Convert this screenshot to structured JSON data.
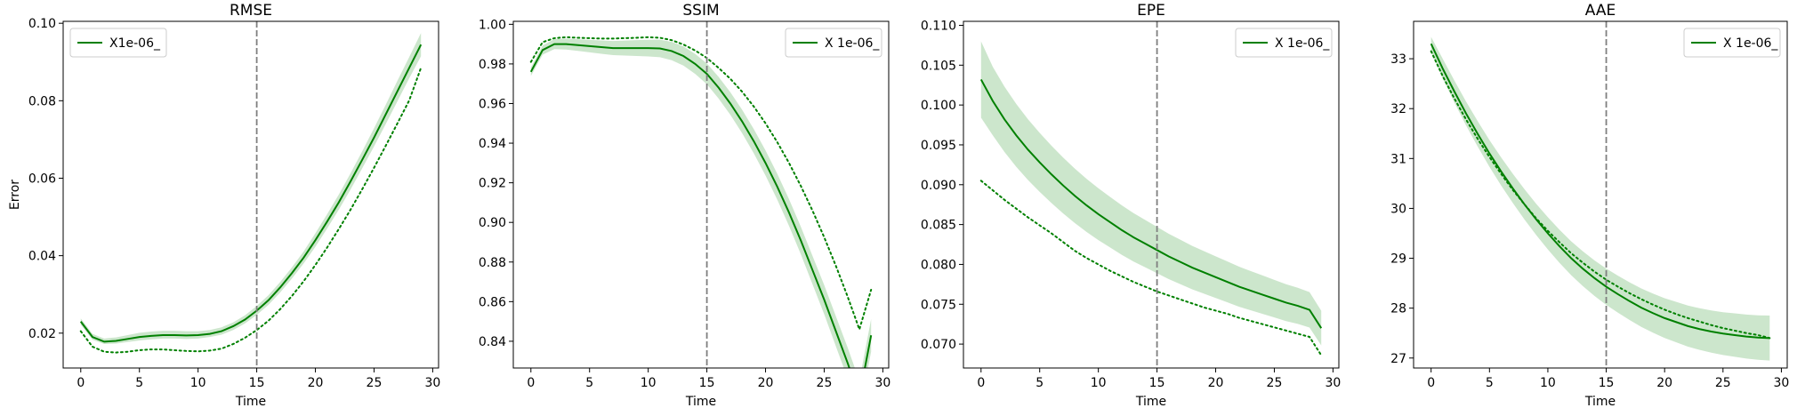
{
  "figure": {
    "background": "#ffffff"
  },
  "chart_data": [
    {
      "type": "line",
      "title": "RMSE",
      "xlabel": "Time",
      "ylabel": "Error",
      "xlim": [
        -1.5,
        30.5
      ],
      "ylim": [
        0.011,
        0.1005
      ],
      "xticks": [
        0,
        5,
        10,
        15,
        20,
        25,
        30
      ],
      "yticks": [
        0.02,
        0.04,
        0.06,
        0.08,
        0.1
      ],
      "ytick_labels": [
        "0.02",
        "0.04",
        "0.06",
        "0.08",
        "0.10"
      ],
      "legend": {
        "position": "upper-left",
        "entries": [
          {
            "label": "X1e-06_",
            "style": "solid"
          }
        ]
      },
      "vline": {
        "x": 15,
        "color": "#7f7f7f",
        "style": "dashed"
      },
      "x": [
        0,
        1,
        2,
        3,
        4,
        5,
        6,
        7,
        8,
        9,
        10,
        11,
        12,
        13,
        14,
        15,
        16,
        17,
        18,
        19,
        20,
        21,
        22,
        23,
        24,
        25,
        26,
        27,
        28,
        29
      ],
      "series": [
        {
          "style": "solid",
          "color": "#008000",
          "values": [
            0.023,
            0.019,
            0.0178,
            0.018,
            0.0185,
            0.019,
            0.0193,
            0.0195,
            0.0195,
            0.0194,
            0.0195,
            0.0198,
            0.0205,
            0.0218,
            0.0235,
            0.0258,
            0.0285,
            0.0318,
            0.0355,
            0.0395,
            0.044,
            0.0488,
            0.0538,
            0.0592,
            0.0648,
            0.0705,
            0.0765,
            0.0825,
            0.0885,
            0.0945
          ],
          "band_lower": [
            0.0222,
            0.0183,
            0.0172,
            0.0173,
            0.0177,
            0.0181,
            0.0184,
            0.0186,
            0.0186,
            0.0185,
            0.0186,
            0.019,
            0.0196,
            0.0208,
            0.0225,
            0.0247,
            0.0273,
            0.0305,
            0.0341,
            0.038,
            0.0423,
            0.047,
            0.0519,
            0.0571,
            0.0626,
            0.0682,
            0.074,
            0.0799,
            0.0858,
            0.0915
          ],
          "band_upper": [
            0.0238,
            0.0198,
            0.0186,
            0.0189,
            0.0195,
            0.0201,
            0.0204,
            0.0206,
            0.0206,
            0.0205,
            0.0205,
            0.0208,
            0.0215,
            0.0228,
            0.0246,
            0.027,
            0.0298,
            0.0332,
            0.037,
            0.0411,
            0.0458,
            0.0507,
            0.0558,
            0.0613,
            0.067,
            0.0729,
            0.079,
            0.0852,
            0.0913,
            0.0975
          ]
        },
        {
          "style": "dotted",
          "color": "#008000",
          "values": [
            0.0205,
            0.0165,
            0.0152,
            0.015,
            0.0152,
            0.0156,
            0.0158,
            0.0158,
            0.0156,
            0.0154,
            0.0153,
            0.0155,
            0.016,
            0.0172,
            0.0188,
            0.0208,
            0.0232,
            0.0262,
            0.0296,
            0.0334,
            0.0376,
            0.0421,
            0.0469,
            0.0519,
            0.0572,
            0.0627,
            0.0684,
            0.0742,
            0.0801,
            0.0885
          ]
        }
      ]
    },
    {
      "type": "line",
      "title": "SSIM",
      "xlabel": "Time",
      "ylabel": "",
      "xlim": [
        -1.5,
        30.5
      ],
      "ylim": [
        0.8265,
        1.0015
      ],
      "xticks": [
        0,
        5,
        10,
        15,
        20,
        25,
        30
      ],
      "yticks": [
        0.84,
        0.86,
        0.88,
        0.9,
        0.92,
        0.94,
        0.96,
        0.98,
        1.0
      ],
      "ytick_labels": [
        "0.84",
        "0.86",
        "0.88",
        "0.90",
        "0.92",
        "0.94",
        "0.96",
        "0.98",
        "1.00"
      ],
      "legend": {
        "position": "upper-right",
        "entries": [
          {
            "label": "X 1e-06_",
            "style": "solid"
          }
        ]
      },
      "vline": {
        "x": 15,
        "color": "#7f7f7f",
        "style": "dashed"
      },
      "x": [
        0,
        1,
        2,
        3,
        4,
        5,
        6,
        7,
        8,
        9,
        10,
        11,
        12,
        13,
        14,
        15,
        16,
        17,
        18,
        19,
        20,
        21,
        22,
        23,
        24,
        25,
        26,
        27,
        28,
        29
      ],
      "series": [
        {
          "style": "solid",
          "color": "#008000",
          "values": [
            0.976,
            0.987,
            0.99,
            0.99,
            0.9895,
            0.989,
            0.9885,
            0.988,
            0.988,
            0.988,
            0.988,
            0.9878,
            0.9865,
            0.984,
            0.98,
            0.975,
            0.968,
            0.96,
            0.951,
            0.941,
            0.93,
            0.918,
            0.905,
            0.891,
            0.876,
            0.861,
            0.845,
            0.829,
            0.812,
            0.843
          ]
        },
        {
          "style": "dotted",
          "color": "#008000",
          "values": [
            0.981,
            0.991,
            0.993,
            0.9935,
            0.9932,
            0.993,
            0.9928,
            0.9928,
            0.993,
            0.9932,
            0.9935,
            0.9932,
            0.992,
            0.9898,
            0.9868,
            0.983,
            0.978,
            0.9725,
            0.966,
            0.9585,
            0.95,
            0.9405,
            0.93,
            0.9185,
            0.906,
            0.8925,
            0.878,
            0.8625,
            0.846,
            0.866
          ]
        }
      ]
    },
    {
      "type": "line",
      "title": "EPE",
      "xlabel": "Time",
      "ylabel": "",
      "xlim": [
        -1.5,
        30.5
      ],
      "ylim": [
        0.067,
        0.1105
      ],
      "xticks": [
        0,
        5,
        10,
        15,
        20,
        25,
        30
      ],
      "yticks": [
        0.07,
        0.075,
        0.08,
        0.085,
        0.09,
        0.095,
        0.1,
        0.105,
        0.11
      ],
      "ytick_labels": [
        "0.070",
        "0.075",
        "0.080",
        "0.085",
        "0.090",
        "0.095",
        "0.100",
        "0.105",
        "0.110"
      ],
      "legend": {
        "position": "upper-right",
        "entries": [
          {
            "label": "X 1e-06_",
            "style": "solid"
          }
        ]
      },
      "vline": {
        "x": 15,
        "color": "#7f7f7f",
        "style": "dashed"
      },
      "x": [
        0,
        1,
        2,
        3,
        4,
        5,
        6,
        7,
        8,
        9,
        10,
        11,
        12,
        13,
        14,
        15,
        16,
        17,
        18,
        19,
        20,
        21,
        22,
        23,
        24,
        25,
        26,
        27,
        28,
        29
      ],
      "series": [
        {
          "style": "solid",
          "color": "#008000",
          "values": [
            0.1032,
            0.1005,
            0.0982,
            0.0962,
            0.0944,
            0.0928,
            0.0913,
            0.0899,
            0.0886,
            0.0874,
            0.0863,
            0.0853,
            0.0843,
            0.0834,
            0.0826,
            0.0818,
            0.081,
            0.0803,
            0.0796,
            0.079,
            0.0784,
            0.0778,
            0.0772,
            0.0767,
            0.0762,
            0.0757,
            0.0752,
            0.0748,
            0.0743,
            0.072
          ]
        },
        {
          "style": "dotted",
          "color": "#008000",
          "values": [
            0.0905,
            0.0893,
            0.0881,
            0.087,
            0.0859,
            0.0849,
            0.0839,
            0.0828,
            0.0817,
            0.0808,
            0.08,
            0.0792,
            0.0785,
            0.0778,
            0.0772,
            0.0766,
            0.0761,
            0.0756,
            0.0751,
            0.0746,
            0.0742,
            0.0738,
            0.0733,
            0.0729,
            0.0725,
            0.0721,
            0.0717,
            0.0713,
            0.0709,
            0.0686
          ]
        }
      ]
    },
    {
      "type": "line",
      "title": "AAE",
      "xlabel": "Time",
      "ylabel": "",
      "xlim": [
        -1.5,
        30.5
      ],
      "ylim": [
        26.8,
        33.75
      ],
      "xticks": [
        0,
        5,
        10,
        15,
        20,
        25,
        30
      ],
      "yticks": [
        27,
        28,
        29,
        30,
        31,
        32,
        33
      ],
      "ytick_labels": [
        "27",
        "28",
        "29",
        "30",
        "31",
        "32",
        "33"
      ],
      "legend": {
        "position": "upper-right",
        "entries": [
          {
            "label": "X 1e-06_",
            "style": "solid"
          }
        ]
      },
      "vline": {
        "x": 15,
        "color": "#7f7f7f",
        "style": "dashed"
      },
      "x": [
        0,
        1,
        2,
        3,
        4,
        5,
        6,
        7,
        8,
        9,
        10,
        11,
        12,
        13,
        14,
        15,
        16,
        17,
        18,
        19,
        20,
        21,
        22,
        23,
        24,
        25,
        26,
        27,
        28,
        29
      ],
      "series": [
        {
          "style": "solid",
          "color": "#008000",
          "values": [
            33.3,
            32.8,
            32.34,
            31.9,
            31.49,
            31.1,
            30.74,
            30.4,
            30.08,
            29.78,
            29.5,
            29.24,
            29.0,
            28.79,
            28.6,
            28.43,
            28.28,
            28.14,
            28.01,
            27.9,
            27.8,
            27.72,
            27.64,
            27.58,
            27.53,
            27.49,
            27.46,
            27.43,
            27.41,
            27.4
          ]
        },
        {
          "style": "dotted",
          "color": "#008000",
          "values": [
            33.15,
            32.65,
            32.2,
            31.78,
            31.39,
            31.03,
            30.69,
            30.37,
            30.08,
            29.8,
            29.55,
            29.32,
            29.1,
            28.91,
            28.73,
            28.57,
            28.43,
            28.3,
            28.18,
            28.07,
            27.97,
            27.88,
            27.8,
            27.73,
            27.66,
            27.6,
            27.55,
            27.5,
            27.46,
            27.4
          ]
        }
      ]
    }
  ]
}
